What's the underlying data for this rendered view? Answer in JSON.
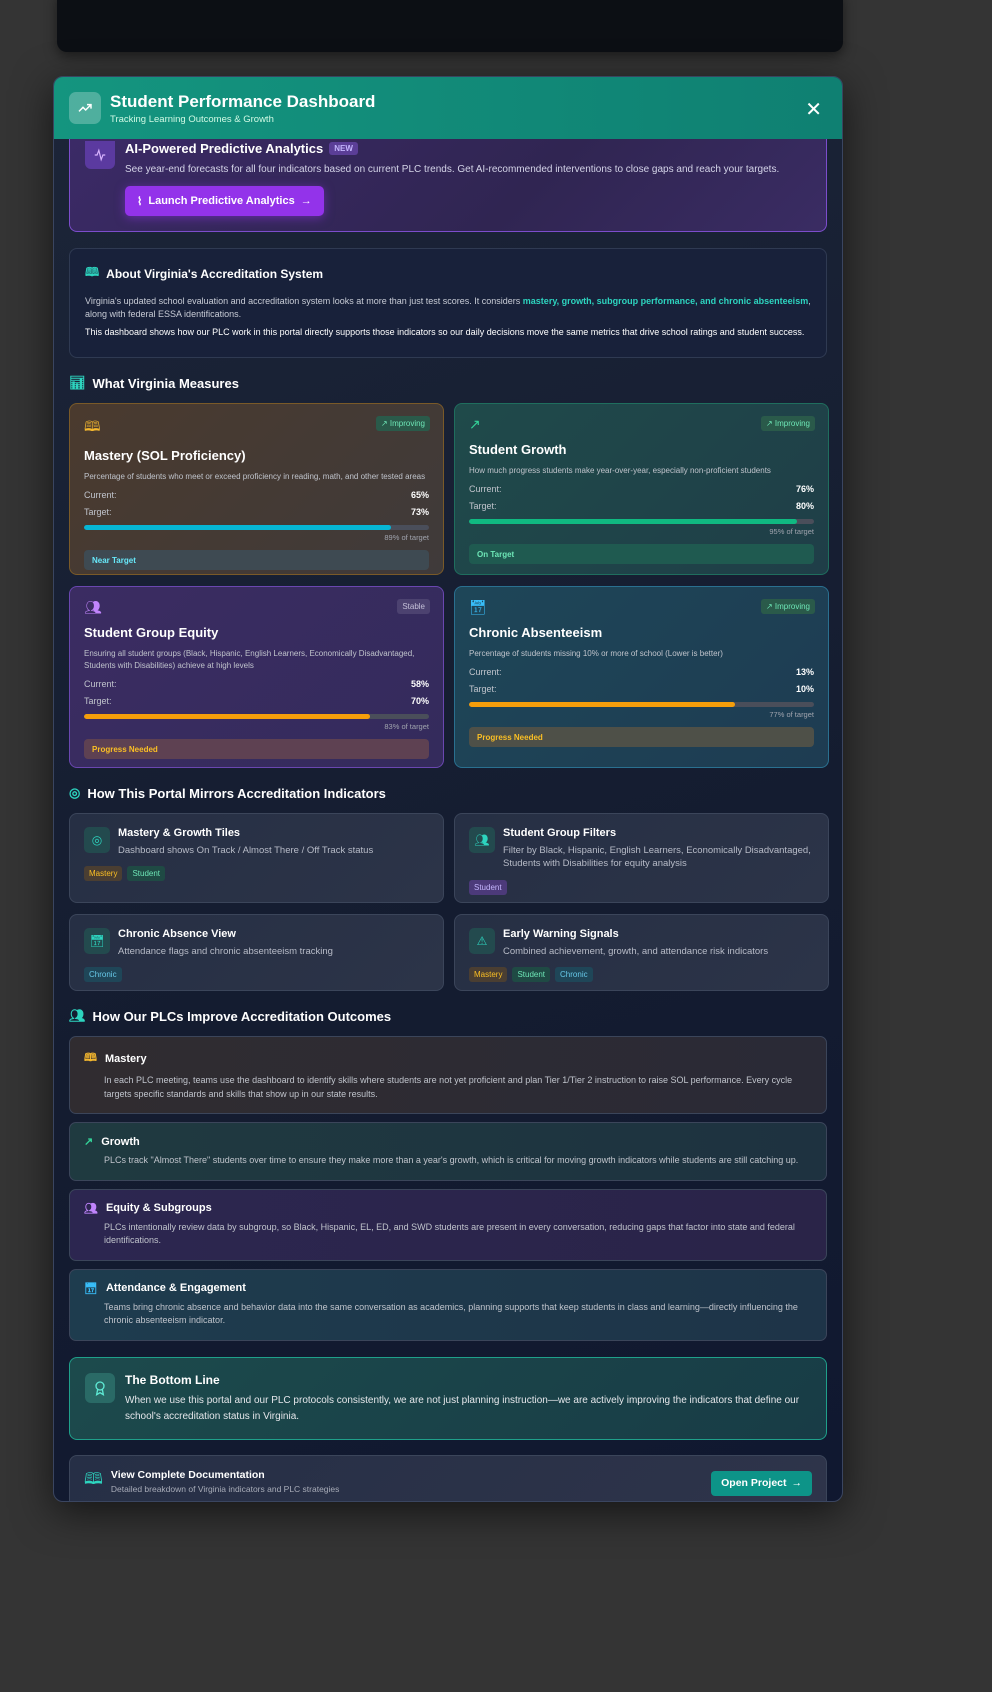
{
  "header": {
    "title": "Student Performance Dashboard",
    "subtitle": "Tracking Learning Outcomes & Growth"
  },
  "ai": {
    "title": "AI-Powered Predictive Analytics",
    "badge": "NEW",
    "desc": "See year-end forecasts for all four indicators based on current PLC trends. Get AI-recommended interventions to close gaps and reach your targets.",
    "button": "Launch Predictive Analytics"
  },
  "about": {
    "title": "About Virginia's Accreditation System",
    "p1_pre": "Virginia's updated school evaluation and accreditation system looks at more than just test scores. It considers ",
    "p1_hl": "mastery, growth, subgroup performance, and chronic absenteeism",
    "p1_post": ", along with federal ESSA identifications.",
    "p2": "This dashboard shows how our PLC work in this portal directly supports those indicators so our daily decisions move the same metrics that drive school ratings and student success."
  },
  "measures": {
    "heading": "What Virginia Measures",
    "current_label": "Current:",
    "target_label": "Target:",
    "cards": [
      {
        "title": "Mastery (SOL Proficiency)",
        "trend": "Improving",
        "desc": "Percentage of students who meet or exceed proficiency in reading, math, and other tested areas",
        "current": "65%",
        "target": "73%",
        "progress": 89,
        "pct": "89% of target",
        "status": "Near Target",
        "bar_color": "#06b6d4"
      },
      {
        "title": "Student Growth",
        "trend": "Improving",
        "desc": "How much progress students make year-over-year, especially non-proficient students",
        "current": "76%",
        "target": "80%",
        "progress": 95,
        "pct": "95% of target",
        "status": "On Target",
        "bar_color": "#10b981"
      },
      {
        "title": "Student Group Equity",
        "trend": "Stable",
        "desc": "Ensuring all student groups (Black, Hispanic, English Learners, Economically Disadvantaged, Students with Disabilities) achieve at high levels",
        "current": "58%",
        "target": "70%",
        "progress": 83,
        "pct": "83% of target",
        "status": "Progress Needed",
        "bar_color": "#f59e0b"
      },
      {
        "title": "Chronic Absenteeism",
        "trend": "Improving",
        "desc": "Percentage of students missing 10% or more of school (Lower is better)",
        "current": "13%",
        "target": "10%",
        "progress": 77,
        "pct": "77% of target",
        "status": "Progress Needed",
        "bar_color": "#f59e0b"
      }
    ]
  },
  "portal": {
    "heading": "How This Portal Mirrors Accreditation Indicators",
    "tiles": [
      {
        "title": "Mastery & Growth Tiles",
        "desc": "Dashboard shows On Track / Almost There / Off Track status",
        "tags": [
          "Mastery",
          "Student"
        ]
      },
      {
        "title": "Student Group Filters",
        "desc": "Filter by Black, Hispanic, English Learners, Economically Disadvantaged, Students with Disabilities for equity analysis",
        "tags": [
          "Student"
        ]
      },
      {
        "title": "Chronic Absence View",
        "desc": "Attendance flags and chronic absenteeism tracking",
        "tags": [
          "Chronic"
        ]
      },
      {
        "title": "Early Warning Signals",
        "desc": "Combined achievement, growth, and attendance risk indicators",
        "tags": [
          "Mastery",
          "Student",
          "Chronic"
        ]
      }
    ]
  },
  "plc": {
    "heading": "How Our PLCs Improve Accreditation Outcomes",
    "items": [
      {
        "title": "Mastery",
        "desc": "In each PLC meeting, teams use the dashboard to identify skills where students are not yet proficient and plan Tier 1/Tier 2 instruction to raise SOL performance. Every cycle targets specific standards and skills that show up in our state results."
      },
      {
        "title": "Growth",
        "desc": "PLCs track \"Almost There\" students over time to ensure they make more than a year's growth, which is critical for moving growth indicators while students are still catching up."
      },
      {
        "title": "Equity & Subgroups",
        "desc": "PLCs intentionally review data by subgroup, so Black, Hispanic, EL, ED, and SWD students are present in every conversation, reducing gaps that factor into state and federal identifications."
      },
      {
        "title": "Attendance & Engagement",
        "desc": "Teams bring chronic absence and behavior data into the same conversation as academics, planning supports that keep students in class and learning—directly influencing the chronic absenteeism indicator."
      }
    ]
  },
  "bottom": {
    "title": "The Bottom Line",
    "desc": "When we use this portal and our PLC protocols consistently, we are not just planning instruction—we are actively improving the indicators that define our school's accreditation status in Virginia."
  },
  "doc": {
    "title": "View Complete Documentation",
    "desc": "Detailed breakdown of Virginia indicators and PLC strategies",
    "button": "Open Project"
  }
}
